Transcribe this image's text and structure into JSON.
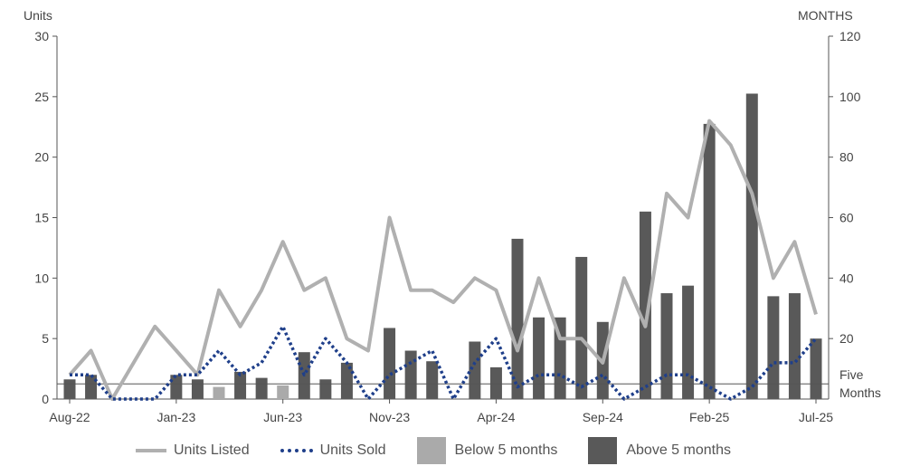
{
  "chart_data": {
    "type": "bar",
    "y_left_label": "Units",
    "y_right_label": "MONTHS",
    "ylim_left": [
      0,
      30
    ],
    "ylim_right": [
      0,
      120
    ],
    "y_left_ticks": [
      "0",
      "5",
      "10",
      "15",
      "20",
      "25",
      "30"
    ],
    "y_right_ticks": [
      "20",
      "40",
      "60",
      "80",
      "100",
      "120"
    ],
    "reference_line_label": [
      "Five",
      "Months"
    ],
    "reference_line_value_months": 5,
    "x_tick_labels": [
      "Aug-22",
      "Jan-23",
      "Jun-23",
      "Nov-23",
      "Apr-24",
      "Sep-24",
      "Feb-25",
      "Jul-25"
    ],
    "x_tick_index": [
      0,
      5,
      10,
      15,
      20,
      25,
      30,
      35
    ],
    "months": [
      "Aug-22",
      "Sep-22",
      "Oct-22",
      "Nov-22",
      "Dec-22",
      "Jan-23",
      "Feb-23",
      "Mar-23",
      "Apr-23",
      "May-23",
      "Jun-23",
      "Jul-23",
      "Aug-23",
      "Sep-23",
      "Oct-23",
      "Nov-23",
      "Dec-23",
      "Jan-24",
      "Feb-24",
      "Mar-24",
      "Apr-24",
      "May-24",
      "Jun-24",
      "Jul-24",
      "Aug-24",
      "Sep-24",
      "Oct-24",
      "Nov-24",
      "Dec-24",
      "Jan-25",
      "Feb-25",
      "Mar-25",
      "Apr-25",
      "May-25",
      "Jun-25",
      "Jul-25"
    ],
    "series": [
      {
        "name": "Units Listed",
        "axis": "left",
        "kind": "line",
        "color": "#b0b0b0",
        "values": [
          2,
          4,
          0,
          3,
          6,
          4,
          2,
          9,
          6,
          9,
          13,
          9,
          10,
          5,
          4,
          15,
          9,
          9,
          8,
          10,
          9,
          4,
          10,
          5,
          5,
          3,
          10,
          6,
          17,
          15,
          23,
          21,
          17,
          10,
          13,
          7
        ]
      },
      {
        "name": "Units Sold",
        "axis": "left",
        "kind": "line",
        "color": "#1f3f8a",
        "style": "dotted",
        "values": [
          2,
          2,
          0,
          0,
          0,
          2,
          2,
          4,
          2,
          3,
          6,
          2,
          5,
          3,
          0,
          2,
          3,
          4,
          0,
          3,
          5,
          1,
          2,
          2,
          1,
          2,
          0,
          1,
          2,
          2,
          1,
          0,
          1,
          3,
          3,
          5
        ]
      },
      {
        "name": "Below 5 months",
        "axis": "right",
        "kind": "bar",
        "color": "#aaaaaa",
        "values": [
          null,
          null,
          null,
          null,
          null,
          null,
          null,
          4,
          null,
          null,
          4.5,
          null,
          null,
          null,
          null,
          null,
          null,
          null,
          null,
          null,
          null,
          null,
          null,
          null,
          null,
          null,
          null,
          null,
          null,
          null,
          null,
          null,
          null,
          null,
          null,
          null
        ]
      },
      {
        "name": "Above 5 months",
        "axis": "right",
        "kind": "bar",
        "color": "#595959",
        "values": [
          6.5,
          8,
          null,
          null,
          null,
          8,
          6.5,
          null,
          9,
          7,
          null,
          15.5,
          6.5,
          12,
          null,
          23.5,
          16,
          12.5,
          null,
          19,
          10.5,
          53,
          27,
          27,
          47,
          25.5,
          null,
          62,
          35,
          37.5,
          91,
          null,
          101,
          34,
          35,
          20
        ]
      }
    ]
  }
}
